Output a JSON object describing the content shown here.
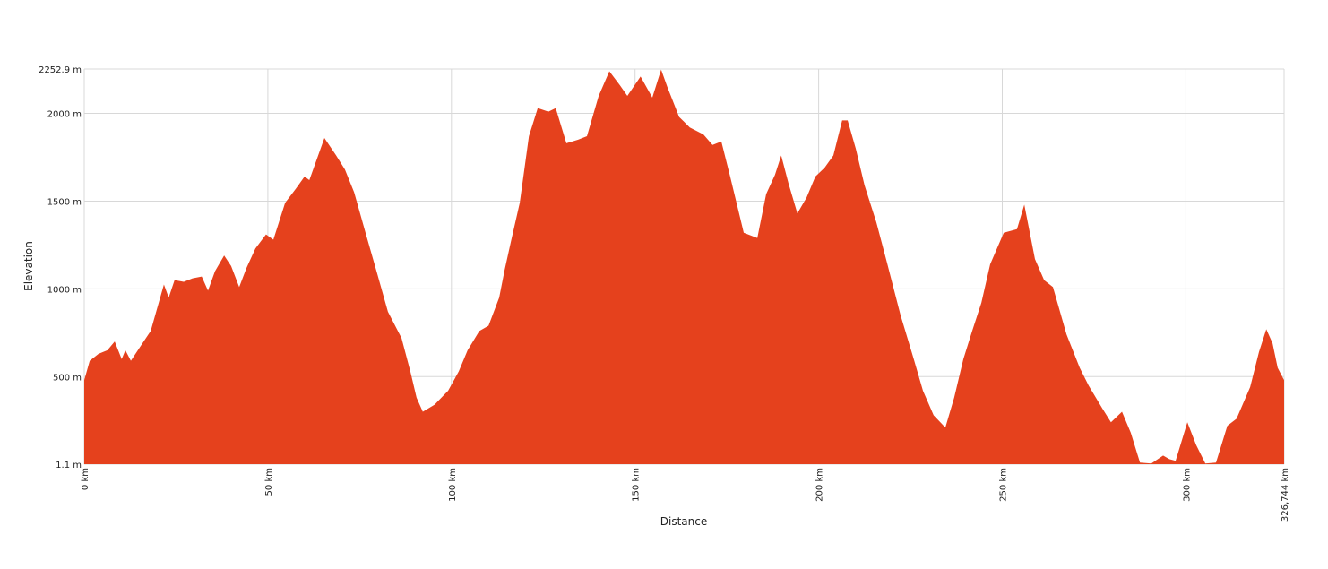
{
  "chart_data": {
    "type": "area",
    "xlabel": "Distance",
    "ylabel": "Elevation",
    "x": [
      0,
      1.5,
      3.9,
      6.3,
      8.3,
      10.2,
      11.2,
      12.7,
      14.9,
      18.1,
      21.7,
      23.0,
      24.6,
      27.1,
      29.5,
      32.0,
      33.7,
      35.6,
      38.1,
      40.0,
      42.2,
      44.2,
      46.6,
      49.5,
      51.5,
      54.7,
      57.6,
      60.0,
      61.3,
      65.4,
      68.6,
      71.0,
      73.5,
      76.6,
      79.6,
      82.7,
      86.4,
      88.8,
      90.5,
      92.2,
      95.4,
      99.1,
      102.0,
      104.4,
      107.6,
      110.1,
      113.0,
      114.5,
      116.2,
      118.6,
      121.1,
      123.5,
      126.4,
      128.4,
      131.3,
      134.5,
      136.9,
      140.1,
      143.0,
      145.9,
      147.9,
      151.5,
      154.7,
      157.1,
      158.8,
      162.0,
      164.9,
      168.6,
      171.1,
      173.5,
      175.9,
      179.6,
      183.3,
      185.7,
      188.1,
      189.8,
      191.8,
      194.2,
      196.7,
      199.1,
      201.6,
      204.0,
      206.4,
      207.9,
      210.1,
      212.5,
      215.7,
      218.6,
      222.3,
      225.9,
      228.4,
      231.3,
      234.5,
      236.9,
      239.4,
      241.8,
      244.3,
      246.7,
      250.4,
      254.0,
      256.0,
      258.9,
      261.4,
      263.8,
      267.5,
      271.1,
      273.5,
      277.2,
      279.6,
      282.6,
      285.0,
      287.5,
      290.6,
      293.8,
      295.5,
      297.2,
      300.4,
      302.8,
      305.3,
      308.2,
      311.3,
      313.8,
      317.5,
      319.9,
      321.9,
      323.6,
      325.0,
      326.744
    ],
    "values": [
      480,
      590,
      630,
      650,
      700,
      600,
      650,
      590,
      660,
      760,
      1025,
      950,
      1050,
      1040,
      1060,
      1070,
      990,
      1100,
      1190,
      1130,
      1010,
      1120,
      1230,
      1310,
      1280,
      1490,
      1570,
      1640,
      1620,
      1860,
      1760,
      1680,
      1550,
      1320,
      1100,
      870,
      720,
      530,
      380,
      300,
      340,
      420,
      530,
      650,
      760,
      790,
      950,
      1110,
      1270,
      1490,
      1870,
      2030,
      2010,
      2030,
      1830,
      1850,
      1870,
      2100,
      2240,
      2160,
      2100,
      2210,
      2090,
      2250,
      2150,
      1980,
      1920,
      1880,
      1820,
      1840,
      1640,
      1320,
      1290,
      1540,
      1650,
      1760,
      1600,
      1430,
      1520,
      1640,
      1690,
      1760,
      1960,
      1960,
      1800,
      1590,
      1380,
      1150,
      850,
      600,
      420,
      280,
      210,
      380,
      600,
      760,
      920,
      1140,
      1320,
      1340,
      1480,
      1170,
      1050,
      1010,
      740,
      550,
      450,
      320,
      240,
      300,
      180,
      10,
      5,
      50,
      30,
      20,
      240,
      110,
      5,
      10,
      220,
      260,
      440,
      640,
      770,
      690,
      550,
      480
    ],
    "color": "#e5411d",
    "xlim": [
      0,
      326.744
    ],
    "xticks": [
      {
        "value": 0,
        "label": "0 km"
      },
      {
        "value": 50,
        "label": "50 km"
      },
      {
        "value": 100,
        "label": "100 km"
      },
      {
        "value": 150,
        "label": "150 km"
      },
      {
        "value": 200,
        "label": "200 km"
      },
      {
        "value": 250,
        "label": "250 km"
      },
      {
        "value": 300,
        "label": "300 km"
      },
      {
        "value": 326.744,
        "label": "326,744 km"
      }
    ],
    "ylim": [
      1.1,
      2252.9
    ],
    "yticks": [
      {
        "value": 1.1,
        "label": "1.1 m"
      },
      {
        "value": 500,
        "label": "500 m"
      },
      {
        "value": 1000,
        "label": "1000 m"
      },
      {
        "value": 1500,
        "label": "1500 m"
      },
      {
        "value": 2000,
        "label": "2000 m"
      },
      {
        "value": 2252.9,
        "label": "2252.9 m"
      }
    ],
    "grid": true
  }
}
